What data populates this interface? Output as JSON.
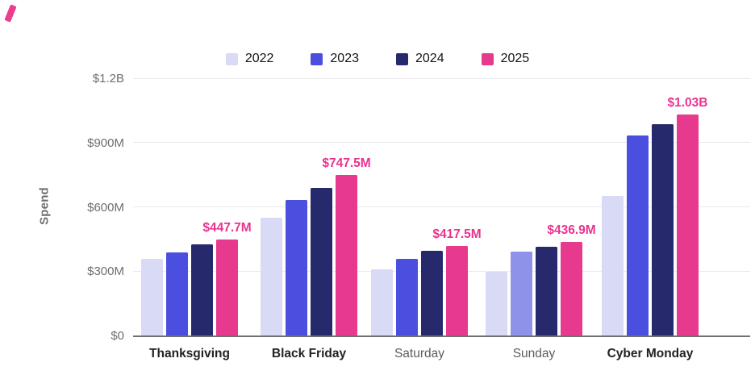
{
  "brand_mark": {
    "color": "#ee3d8f"
  },
  "legend": {
    "items": [
      {
        "label": "2022",
        "color": "#d9daf6"
      },
      {
        "label": "2023",
        "color": "#4a4fdf"
      },
      {
        "label": "2024",
        "color": "#26296c"
      },
      {
        "label": "2025",
        "color": "#e73a8e"
      }
    ]
  },
  "chart_data": {
    "type": "bar",
    "title": "",
    "xlabel": "",
    "ylabel": "Spend",
    "categories": [
      "Thanksgiving",
      "Black Friday",
      "Saturday",
      "Sunday",
      "Cyber Monday"
    ],
    "categories_bold": [
      true,
      true,
      false,
      false,
      true
    ],
    "series": [
      {
        "name": "2022",
        "color": "#d9daf6",
        "values": [
          359,
          551,
          308,
          296,
          651
        ]
      },
      {
        "name": "2023",
        "color": "#4a4fdf",
        "values": [
          386,
          631,
          358,
          392,
          934
        ]
      },
      {
        "name": "2024",
        "color": "#26296c",
        "values": [
          426,
          688,
          394,
          412,
          985
        ]
      },
      {
        "name": "2025",
        "color": "#e73a8e",
        "values": [
          447.7,
          747.5,
          417.5,
          436.9,
          1030
        ]
      }
    ],
    "values_unit": "USD millions (estimated from axis; 2025 values from data labels)",
    "color_overrides": [
      {
        "category": "Sunday",
        "series": "2023",
        "color": "#8f92e9"
      }
    ],
    "annotations": {
      "series": "2025",
      "labels": [
        "$447.7M",
        "$747.5M",
        "$417.5M",
        "$436.9M",
        "$1.03B"
      ],
      "color": "#ea3390"
    },
    "y_axis": {
      "ylim": [
        0,
        1200
      ],
      "ticks": [
        {
          "label": "$0",
          "value": 0
        },
        {
          "label": "$300M",
          "value": 300
        },
        {
          "label": "$600M",
          "value": 600
        },
        {
          "label": "$900M",
          "value": 900
        },
        {
          "label": "$1.2B",
          "value": 1200
        }
      ]
    },
    "grid": true,
    "legend_position": "top-center"
  }
}
